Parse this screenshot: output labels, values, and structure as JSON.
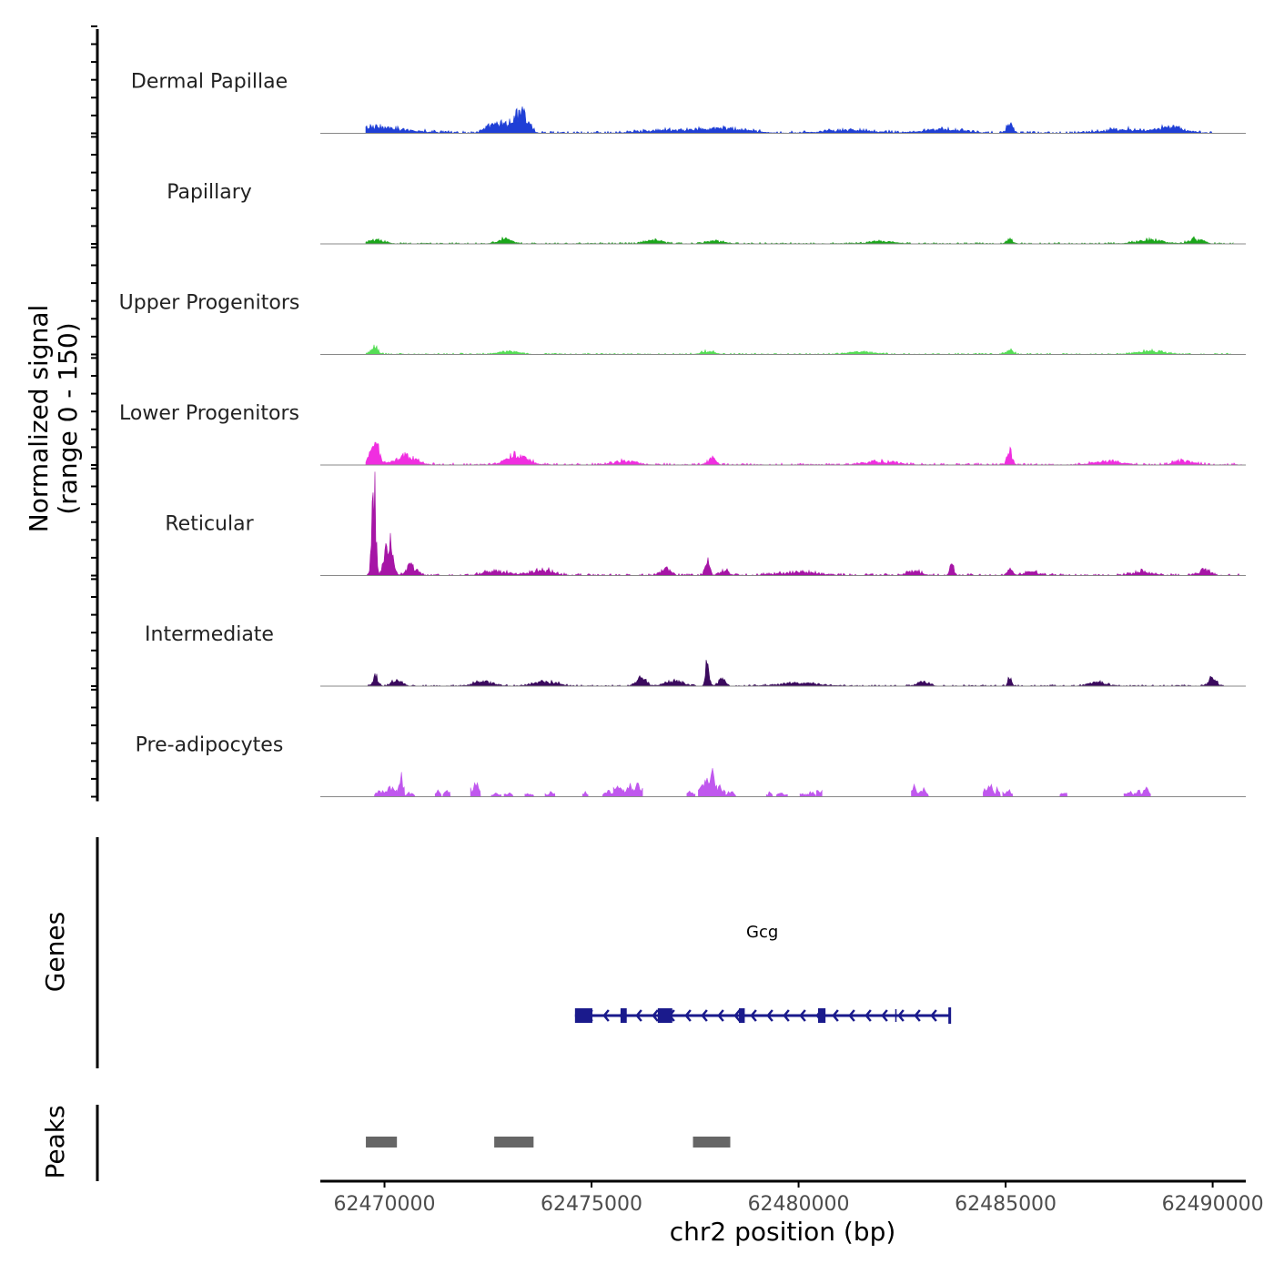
{
  "chart_data": {
    "type": "area",
    "title": "",
    "ylabel_line1": "Normalized signal",
    "ylabel_line2": "(range 0 - 150)",
    "ylim": [
      0,
      150
    ],
    "xlabel": "chr2 position (bp)",
    "xlim": [
      62468450,
      62490800
    ],
    "x_ticks": [
      62470000,
      62475000,
      62480000,
      62485000,
      62490000
    ],
    "x_tick_labels": [
      "62470000",
      "62475000",
      "62480000",
      "62485000",
      "62490000"
    ],
    "series": [
      {
        "name": "Dermal Papillae",
        "color": "#1f3fd6",
        "peaks": [
          [
            62469600,
            8,
            2200
          ],
          [
            62472700,
            15,
            500
          ],
          [
            62473200,
            22,
            400
          ],
          [
            62473400,
            14,
            300
          ],
          [
            62476800,
            4,
            1500
          ],
          [
            62478200,
            6,
            1400
          ],
          [
            62481200,
            4,
            1500
          ],
          [
            62483500,
            5,
            1200
          ],
          [
            62485100,
            12,
            200
          ],
          [
            62487800,
            5,
            1200
          ],
          [
            62489000,
            8,
            800
          ]
        ],
        "noise": 3,
        "start": 62469550,
        "end": 62490200
      },
      {
        "name": "Papillary",
        "color": "#1aa61a",
        "peaks": [
          [
            62469800,
            5,
            500
          ],
          [
            62472900,
            6,
            400
          ],
          [
            62476500,
            5,
            500
          ],
          [
            62478000,
            4,
            500
          ],
          [
            62482000,
            3,
            800
          ],
          [
            62485100,
            6,
            200
          ],
          [
            62488500,
            5,
            800
          ],
          [
            62489600,
            7,
            400
          ]
        ],
        "noise": 2,
        "start": 62469550,
        "end": 62490500
      },
      {
        "name": "Upper Progenitors",
        "color": "#55dd55",
        "peaks": [
          [
            62469750,
            10,
            220
          ],
          [
            62473000,
            4,
            600
          ],
          [
            62477800,
            4,
            400
          ],
          [
            62481500,
            3,
            800
          ],
          [
            62485100,
            6,
            200
          ],
          [
            62488500,
            4,
            800
          ]
        ],
        "noise": 2,
        "start": 62469550,
        "end": 62490500
      },
      {
        "name": "Lower Progenitors",
        "color": "#f02ee0",
        "peaks": [
          [
            62469750,
            35,
            250
          ],
          [
            62470500,
            12,
            600
          ],
          [
            62473200,
            14,
            600
          ],
          [
            62475800,
            5,
            700
          ],
          [
            62477900,
            10,
            200
          ],
          [
            62482000,
            4,
            1000
          ],
          [
            62485100,
            20,
            150
          ],
          [
            62487500,
            5,
            800
          ],
          [
            62489300,
            5,
            600
          ]
        ],
        "noise": 3,
        "start": 62469550,
        "end": 62490700
      },
      {
        "name": "Reticular",
        "color": "#a615a6",
        "peaks": [
          [
            62469740,
            138,
            110
          ],
          [
            62470100,
            48,
            220
          ],
          [
            62470650,
            14,
            300
          ],
          [
            62472700,
            6,
            700
          ],
          [
            62473800,
            8,
            600
          ],
          [
            62476800,
            12,
            250
          ],
          [
            62477800,
            30,
            120
          ],
          [
            62478200,
            6,
            300
          ],
          [
            62480000,
            4,
            1200
          ],
          [
            62482800,
            6,
            400
          ],
          [
            62483700,
            16,
            120
          ],
          [
            62485100,
            10,
            150
          ],
          [
            62485600,
            5,
            400
          ],
          [
            62488300,
            5,
            600
          ],
          [
            62489800,
            8,
            300
          ]
        ],
        "noise": 3,
        "start": 62469550,
        "end": 62490650
      },
      {
        "name": "Intermediate",
        "color": "#3b0a5e",
        "peaks": [
          [
            62469780,
            16,
            150
          ],
          [
            62470300,
            8,
            300
          ],
          [
            62472400,
            6,
            600
          ],
          [
            62473900,
            6,
            700
          ],
          [
            62476200,
            10,
            300
          ],
          [
            62477000,
            8,
            500
          ],
          [
            62477800,
            38,
            100
          ],
          [
            62478150,
            10,
            200
          ],
          [
            62480000,
            4,
            1200
          ],
          [
            62483000,
            6,
            350
          ],
          [
            62485100,
            12,
            100
          ],
          [
            62487200,
            5,
            500
          ],
          [
            62490000,
            12,
            200
          ]
        ],
        "noise": 2,
        "start": 62469550,
        "end": 62490300
      },
      {
        "name": "Pre-adipocytes",
        "color": "#c058ee",
        "clusters": [
          [
            62469900,
            10
          ],
          [
            62470050,
            14
          ],
          [
            62470150,
            18
          ],
          [
            62470400,
            36
          ],
          [
            62470600,
            8
          ],
          [
            62471300,
            10
          ],
          [
            62471500,
            12
          ],
          [
            62472200,
            24
          ],
          [
            62472700,
            8
          ],
          [
            62473000,
            8
          ],
          [
            62473500,
            8
          ],
          [
            62474000,
            8
          ],
          [
            62474850,
            8
          ],
          [
            62475400,
            10
          ],
          [
            62475650,
            24
          ],
          [
            62475900,
            20
          ],
          [
            62476100,
            22
          ],
          [
            62477400,
            10
          ],
          [
            62477700,
            26
          ],
          [
            62477900,
            52
          ],
          [
            62478100,
            18
          ],
          [
            62478350,
            8
          ],
          [
            62479300,
            8
          ],
          [
            62479600,
            8
          ],
          [
            62480100,
            8
          ],
          [
            62480300,
            10
          ],
          [
            62480500,
            16
          ],
          [
            62482800,
            24
          ],
          [
            62483000,
            16
          ],
          [
            62484600,
            22
          ],
          [
            62484800,
            14
          ],
          [
            62485050,
            12
          ],
          [
            62486400,
            10
          ],
          [
            62488000,
            8
          ],
          [
            62488200,
            10
          ],
          [
            62488400,
            16
          ]
        ],
        "start": 62469550,
        "end": 62488600
      }
    ],
    "genes_label": "Genes",
    "gene": {
      "name": "Gcg",
      "start": 62474600,
      "end": 62483650,
      "strand": "-",
      "exons": [
        [
          62474600,
          62475020
        ],
        [
          62475700,
          62475850
        ],
        [
          62476600,
          62476950
        ],
        [
          62478560,
          62478700
        ],
        [
          62480470,
          62480650
        ]
      ],
      "introns_marks": [
        62482350
      ]
    },
    "peaks_label": "Peaks",
    "peaks": [
      [
        62469550,
        62470300
      ],
      [
        62472650,
        62473600
      ],
      [
        62477450,
        62478350
      ]
    ],
    "colors": {
      "gene": "#1a1a8c",
      "peak": "#666666",
      "baseline": "#888888",
      "axis": "#000000"
    }
  }
}
